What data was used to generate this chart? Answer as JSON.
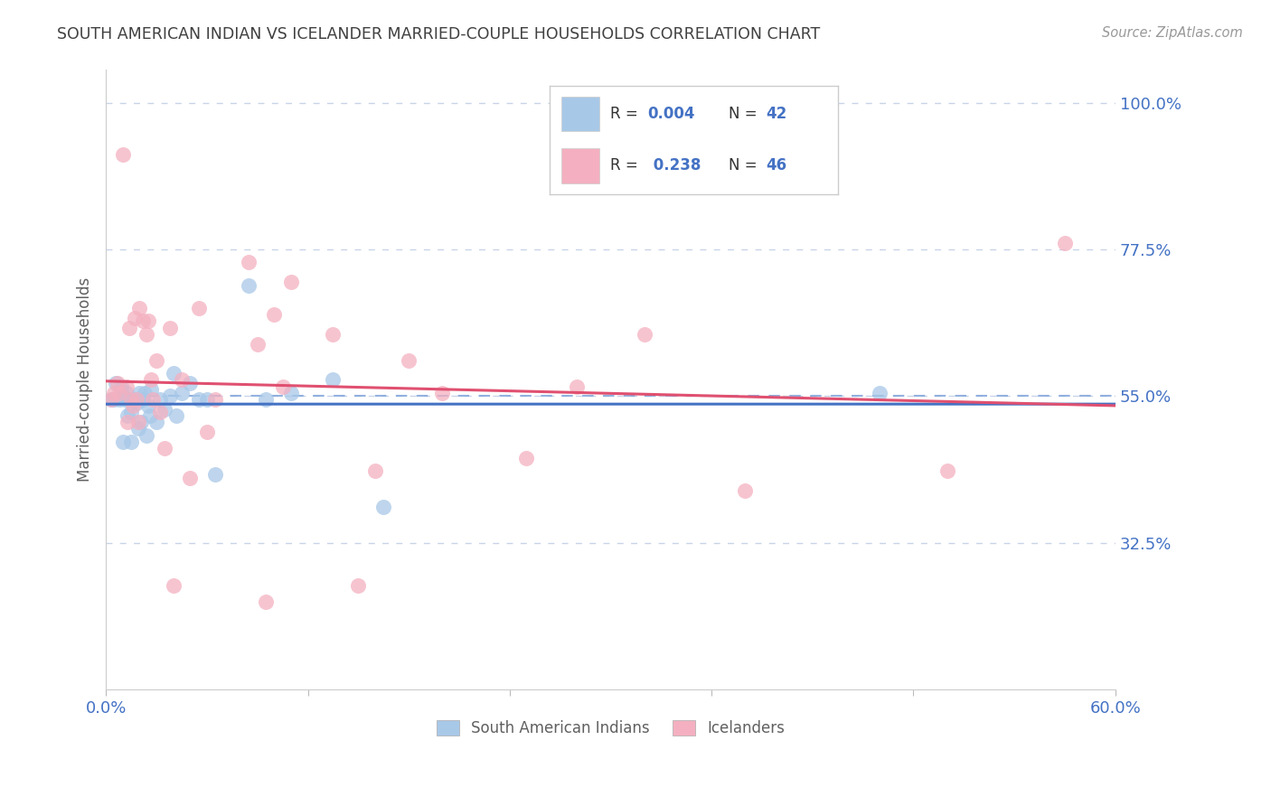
{
  "title": "SOUTH AMERICAN INDIAN VS ICELANDER MARRIED-COUPLE HOUSEHOLDS CORRELATION CHART",
  "source": "Source: ZipAtlas.com",
  "ylabel": "Married-couple Households",
  "xlim": [
    0.0,
    0.6
  ],
  "ylim": [
    0.1,
    1.05
  ],
  "yticks": [
    0.325,
    0.55,
    0.775,
    1.0
  ],
  "ytick_labels": [
    "32.5%",
    "55.0%",
    "77.5%",
    "100.0%"
  ],
  "xticks": [
    0.0,
    0.12,
    0.24,
    0.36,
    0.48,
    0.6
  ],
  "xtick_labels": [
    "0.0%",
    "",
    "",
    "",
    "",
    "60.0%"
  ],
  "legend_blue_label": "South American Indians",
  "legend_pink_label": "Icelanders",
  "R_blue": 0.004,
  "N_blue": 42,
  "R_pink": 0.238,
  "N_pink": 46,
  "blue_color": "#a8c8e8",
  "pink_color": "#f4b0c0",
  "blue_line_color": "#4472c4",
  "pink_line_color": "#e05070",
  "dashed_line_color": "#88aadd",
  "dashed_line_y": 0.55,
  "grid_color": "#c8d4e8",
  "title_color": "#404040",
  "axis_label_color": "#606060",
  "tick_color": "#4472c4",
  "background_color": "#ffffff",
  "legend_border_color": "#cccccc",
  "blue_scatter_x": [
    0.003,
    0.005,
    0.006,
    0.008,
    0.009,
    0.01,
    0.01,
    0.011,
    0.012,
    0.013,
    0.014,
    0.015,
    0.015,
    0.016,
    0.017,
    0.018,
    0.019,
    0.02,
    0.021,
    0.022,
    0.023,
    0.024,
    0.025,
    0.026,
    0.027,
    0.03,
    0.032,
    0.035,
    0.038,
    0.04,
    0.042,
    0.045,
    0.05,
    0.055,
    0.06,
    0.065,
    0.085,
    0.095,
    0.11,
    0.135,
    0.165,
    0.46
  ],
  "blue_scatter_y": [
    0.545,
    0.545,
    0.57,
    0.545,
    0.565,
    0.55,
    0.48,
    0.545,
    0.555,
    0.52,
    0.545,
    0.525,
    0.48,
    0.545,
    0.545,
    0.54,
    0.5,
    0.555,
    0.51,
    0.545,
    0.555,
    0.49,
    0.535,
    0.52,
    0.56,
    0.51,
    0.545,
    0.53,
    0.55,
    0.585,
    0.52,
    0.555,
    0.57,
    0.545,
    0.545,
    0.43,
    0.72,
    0.545,
    0.555,
    0.575,
    0.38,
    0.555
  ],
  "pink_scatter_x": [
    0.003,
    0.005,
    0.007,
    0.008,
    0.01,
    0.012,
    0.013,
    0.014,
    0.015,
    0.016,
    0.017,
    0.018,
    0.019,
    0.02,
    0.022,
    0.024,
    0.025,
    0.027,
    0.028,
    0.03,
    0.032,
    0.035,
    0.038,
    0.04,
    0.045,
    0.05,
    0.055,
    0.06,
    0.065,
    0.085,
    0.09,
    0.095,
    0.1,
    0.105,
    0.11,
    0.135,
    0.15,
    0.16,
    0.18,
    0.2,
    0.25,
    0.28,
    0.32,
    0.38,
    0.5,
    0.57
  ],
  "pink_scatter_y": [
    0.545,
    0.555,
    0.57,
    0.555,
    0.92,
    0.565,
    0.51,
    0.655,
    0.545,
    0.535,
    0.67,
    0.545,
    0.51,
    0.685,
    0.665,
    0.645,
    0.665,
    0.575,
    0.545,
    0.605,
    0.525,
    0.47,
    0.655,
    0.26,
    0.575,
    0.425,
    0.685,
    0.495,
    0.545,
    0.755,
    0.63,
    0.235,
    0.675,
    0.565,
    0.725,
    0.645,
    0.26,
    0.435,
    0.605,
    0.555,
    0.455,
    0.565,
    0.645,
    0.405,
    0.435,
    0.785
  ]
}
